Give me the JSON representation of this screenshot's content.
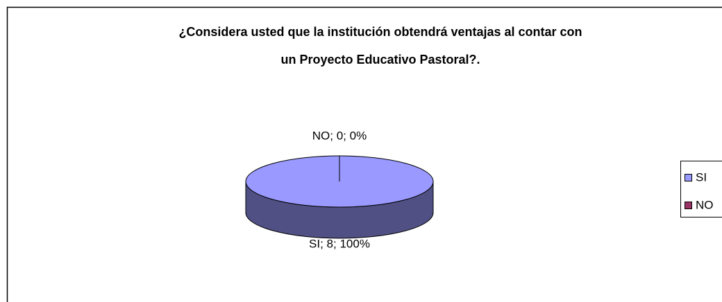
{
  "chart_data": {
    "type": "pie",
    "title": [
      "¿Considera usted que la institución obtendrá ventajas al contar con",
      "un Proyecto Educativo Pastoral?."
    ],
    "categories": [
      "SI",
      "NO"
    ],
    "values": [
      8,
      0
    ],
    "value_labels": [
      "SI; 8; 100%",
      "NO; 0; 0%"
    ],
    "colors": [
      "#9999ff",
      "#993366"
    ],
    "legend": "right"
  }
}
